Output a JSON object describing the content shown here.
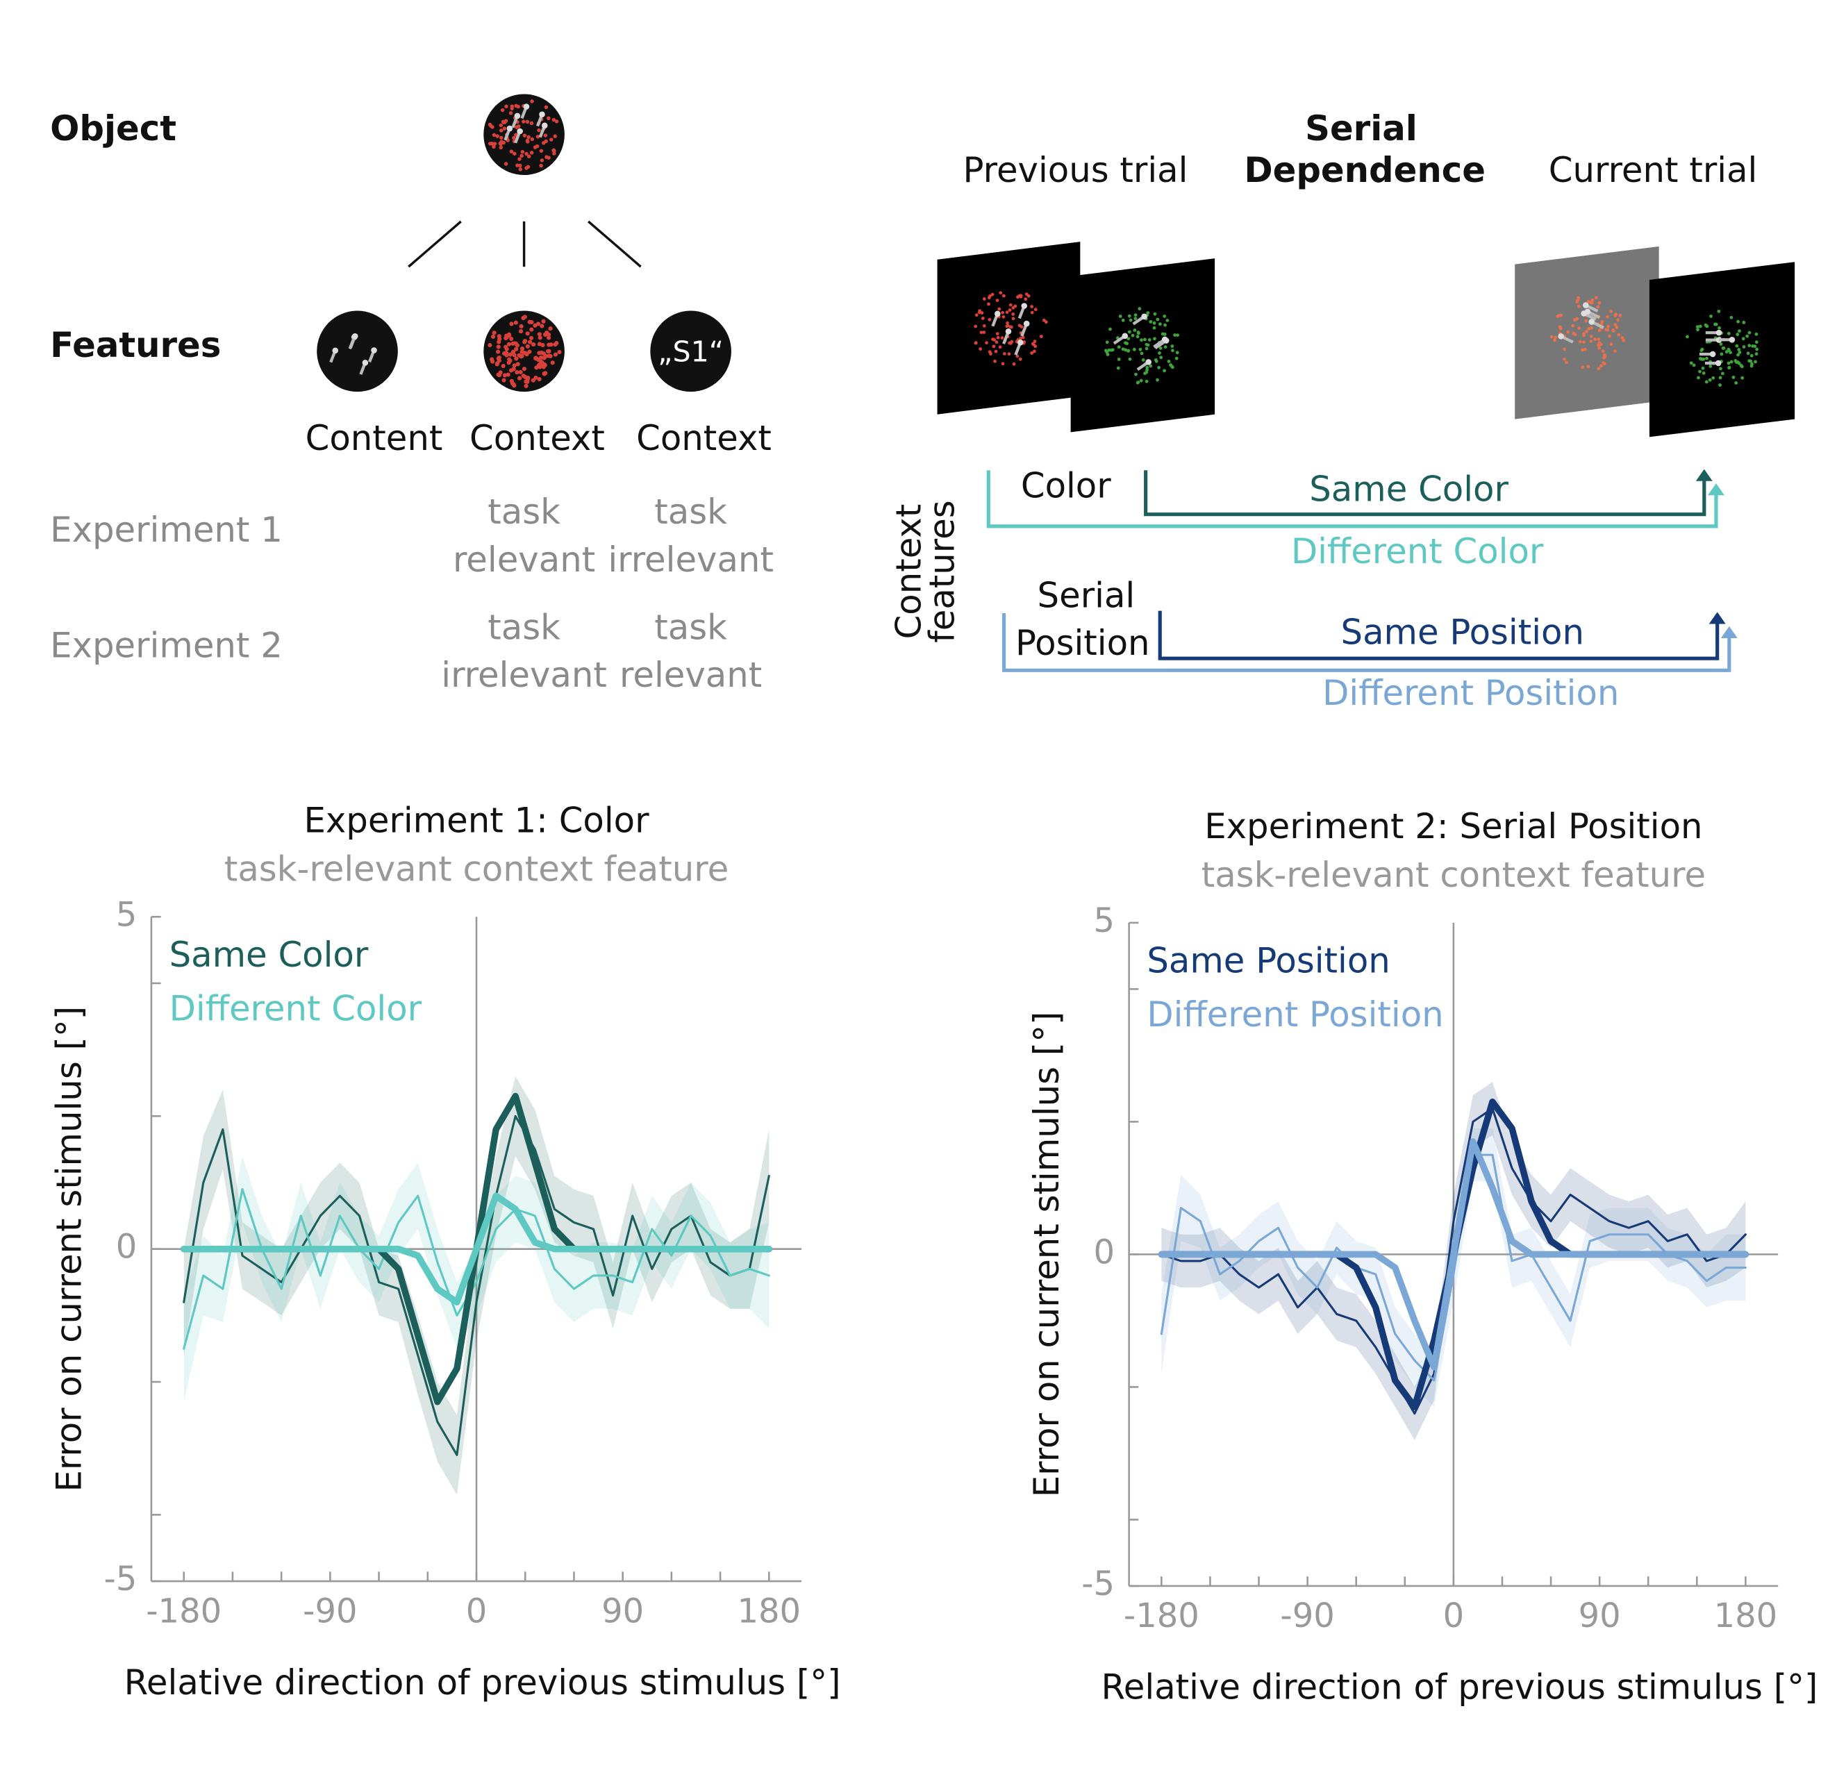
{
  "object_panel": {
    "object_label": "Object",
    "features_label": "Features",
    "features": [
      "Content",
      "Context",
      "Context"
    ],
    "s1_label": "„S1“",
    "experiments": [
      {
        "name": "Experiment 1",
        "col1": [
          "task",
          "relevant"
        ],
        "col2": [
          "task",
          "irrelevant"
        ]
      },
      {
        "name": "Experiment 2",
        "col1": [
          "task",
          "irrelevant"
        ],
        "col2": [
          "task",
          "relevant"
        ]
      }
    ]
  },
  "serial_panel": {
    "title": [
      "Serial",
      "Dependence"
    ],
    "previous": "Previous trial",
    "current": "Current trial",
    "axis_label": [
      "Context",
      "features"
    ],
    "color_label": "Color",
    "same_color": "Same Color",
    "different_color": "Different Color",
    "position_label": [
      "Serial",
      "Position"
    ],
    "same_position": "Same Position",
    "different_position": "Different Position"
  },
  "chart_data": [
    {
      "type": "line",
      "title": "Experiment 1: Color",
      "subtitle": "task-relevant context feature",
      "xlabel": "Relative direction of previous stimulus [°]",
      "ylabel": "Error on current stimulus [°]",
      "xlim": [
        -200,
        200
      ],
      "ylim": [
        -5,
        5
      ],
      "xticks": [
        -180,
        -90,
        0,
        90,
        180
      ],
      "yticks": [
        -5,
        0,
        5
      ],
      "xminorticks": [
        -150,
        -120,
        -60,
        -30,
        30,
        60,
        120,
        150
      ],
      "yminorticks": [
        -4,
        -2,
        2,
        4
      ],
      "x": [
        -180,
        -168,
        -156,
        -144,
        -132,
        -120,
        -108,
        -96,
        -84,
        -72,
        -60,
        -48,
        -36,
        -24,
        -12,
        0,
        12,
        24,
        36,
        48,
        60,
        72,
        84,
        96,
        108,
        120,
        132,
        144,
        156,
        168,
        180
      ],
      "series": [
        {
          "name": "Same Color",
          "color": "#1b5e5a",
          "values": [
            -0.8,
            1.0,
            1.8,
            -0.1,
            -0.3,
            -0.5,
            0.0,
            0.5,
            0.8,
            0.5,
            -0.5,
            -0.6,
            -1.6,
            -2.6,
            -3.1,
            -0.8,
            0.8,
            2.0,
            1.5,
            0.6,
            0.4,
            0.3,
            -0.7,
            0.5,
            -0.3,
            0.3,
            0.5,
            -0.2,
            -0.4,
            -0.3,
            1.1
          ],
          "error": [
            0.8,
            0.7,
            0.6,
            0.5,
            0.5,
            0.5,
            0.5,
            0.5,
            0.5,
            0.5,
            0.5,
            0.5,
            0.6,
            0.6,
            0.6,
            0.6,
            0.6,
            0.6,
            0.6,
            0.5,
            0.5,
            0.5,
            0.5,
            0.5,
            0.5,
            0.5,
            0.5,
            0.5,
            0.5,
            0.6,
            0.7
          ],
          "fit": [
            0,
            0,
            0,
            0,
            0,
            0,
            0,
            0,
            0,
            0,
            0,
            -0.3,
            -1.3,
            -2.3,
            -1.8,
            0,
            1.8,
            2.3,
            1.3,
            0.3,
            0,
            0,
            0,
            0,
            0,
            0,
            0,
            0,
            0,
            0,
            0
          ]
        },
        {
          "name": "Different Color",
          "color": "#5ec8c2",
          "values": [
            -1.5,
            -0.4,
            -0.6,
            0.9,
            0.0,
            -0.6,
            0.5,
            -0.4,
            0.5,
            0.0,
            -0.3,
            0.4,
            0.8,
            -0.2,
            -1.0,
            -0.5,
            0.3,
            0.6,
            0.5,
            -0.3,
            -0.6,
            -0.4,
            -0.4,
            -0.5,
            0.3,
            -0.1,
            0.5,
            0.2,
            -0.4,
            -0.3,
            -0.4
          ],
          "error": [
            0.8,
            0.6,
            0.5,
            0.5,
            0.5,
            0.5,
            0.5,
            0.5,
            0.5,
            0.5,
            0.5,
            0.5,
            0.5,
            0.5,
            0.5,
            0.5,
            0.5,
            0.5,
            0.5,
            0.5,
            0.5,
            0.5,
            0.5,
            0.5,
            0.5,
            0.5,
            0.5,
            0.5,
            0.5,
            0.6,
            0.8
          ],
          "fit": [
            0,
            0,
            0,
            0,
            0,
            0,
            0,
            0,
            0,
            0,
            0,
            0,
            -0.1,
            -0.6,
            -0.8,
            0,
            0.8,
            0.6,
            0.1,
            0,
            0,
            0,
            0,
            0,
            0,
            0,
            0,
            0,
            0,
            0,
            0
          ]
        }
      ]
    },
    {
      "type": "line",
      "title": "Experiment 2: Serial Position",
      "subtitle": "task-relevant context feature",
      "xlabel": "Relative direction of previous stimulus [°]",
      "ylabel": "Error on current stimulus [°]",
      "xlim": [
        -200,
        200
      ],
      "ylim": [
        -5,
        5
      ],
      "xticks": [
        -180,
        -90,
        0,
        90,
        180
      ],
      "yticks": [
        -5,
        0,
        5
      ],
      "xminorticks": [
        -150,
        -120,
        -60,
        -30,
        30,
        60,
        120,
        150
      ],
      "yminorticks": [
        -4,
        -2,
        2,
        4
      ],
      "x": [
        -180,
        -168,
        -156,
        -144,
        -132,
        -120,
        -108,
        -96,
        -84,
        -72,
        -60,
        -48,
        -36,
        -24,
        -12,
        0,
        12,
        24,
        36,
        48,
        60,
        72,
        84,
        96,
        108,
        120,
        132,
        144,
        156,
        168,
        180
      ],
      "series": [
        {
          "name": "Same Position",
          "color": "#163a78",
          "values": [
            0.0,
            -0.1,
            -0.1,
            0.0,
            -0.3,
            -0.5,
            -0.3,
            -0.8,
            -0.5,
            -0.9,
            -1.0,
            -1.4,
            -1.9,
            -2.4,
            -1.8,
            0.5,
            2.0,
            2.2,
            1.3,
            0.8,
            0.5,
            0.9,
            0.7,
            0.5,
            0.4,
            0.5,
            0.2,
            0.3,
            -0.1,
            0.0,
            0.3
          ],
          "error": [
            0.4,
            0.4,
            0.4,
            0.4,
            0.4,
            0.4,
            0.4,
            0.4,
            0.4,
            0.4,
            0.4,
            0.4,
            0.4,
            0.4,
            0.4,
            0.4,
            0.4,
            0.4,
            0.4,
            0.4,
            0.4,
            0.4,
            0.4,
            0.4,
            0.4,
            0.4,
            0.4,
            0.4,
            0.4,
            0.4,
            0.5
          ],
          "fit": [
            0,
            0,
            0,
            0,
            0,
            0,
            0,
            0,
            0,
            0,
            -0.2,
            -0.8,
            -1.9,
            -2.3,
            -1.3,
            0,
            1.3,
            2.3,
            1.9,
            0.8,
            0.2,
            0,
            0,
            0,
            0,
            0,
            0,
            0,
            0,
            0,
            0
          ]
        },
        {
          "name": "Different Position",
          "color": "#7aa7d6",
          "values": [
            -1.2,
            0.7,
            0.5,
            -0.3,
            -0.1,
            0.2,
            0.4,
            -0.2,
            -0.5,
            0.1,
            -0.2,
            -0.3,
            -1.2,
            -1.6,
            -1.9,
            -0.3,
            1.5,
            1.5,
            -0.1,
            0.0,
            -0.5,
            -1.0,
            0.2,
            0.3,
            0.3,
            0.3,
            0.0,
            -0.1,
            -0.4,
            -0.2,
            -0.2
          ],
          "error": [
            0.6,
            0.5,
            0.4,
            0.4,
            0.4,
            0.4,
            0.4,
            0.4,
            0.4,
            0.4,
            0.4,
            0.4,
            0.4,
            0.4,
            0.4,
            0.4,
            0.4,
            0.4,
            0.4,
            0.4,
            0.4,
            0.4,
            0.4,
            0.4,
            0.4,
            0.4,
            0.4,
            0.4,
            0.4,
            0.5,
            0.5
          ],
          "fit": [
            0,
            0,
            0,
            0,
            0,
            0,
            0,
            0,
            0,
            0,
            0,
            0,
            -0.2,
            -1.0,
            -1.7,
            0,
            1.7,
            1.0,
            0.2,
            0,
            0,
            0,
            0,
            0,
            0,
            0,
            0,
            0,
            0,
            0,
            0
          ]
        }
      ]
    }
  ]
}
